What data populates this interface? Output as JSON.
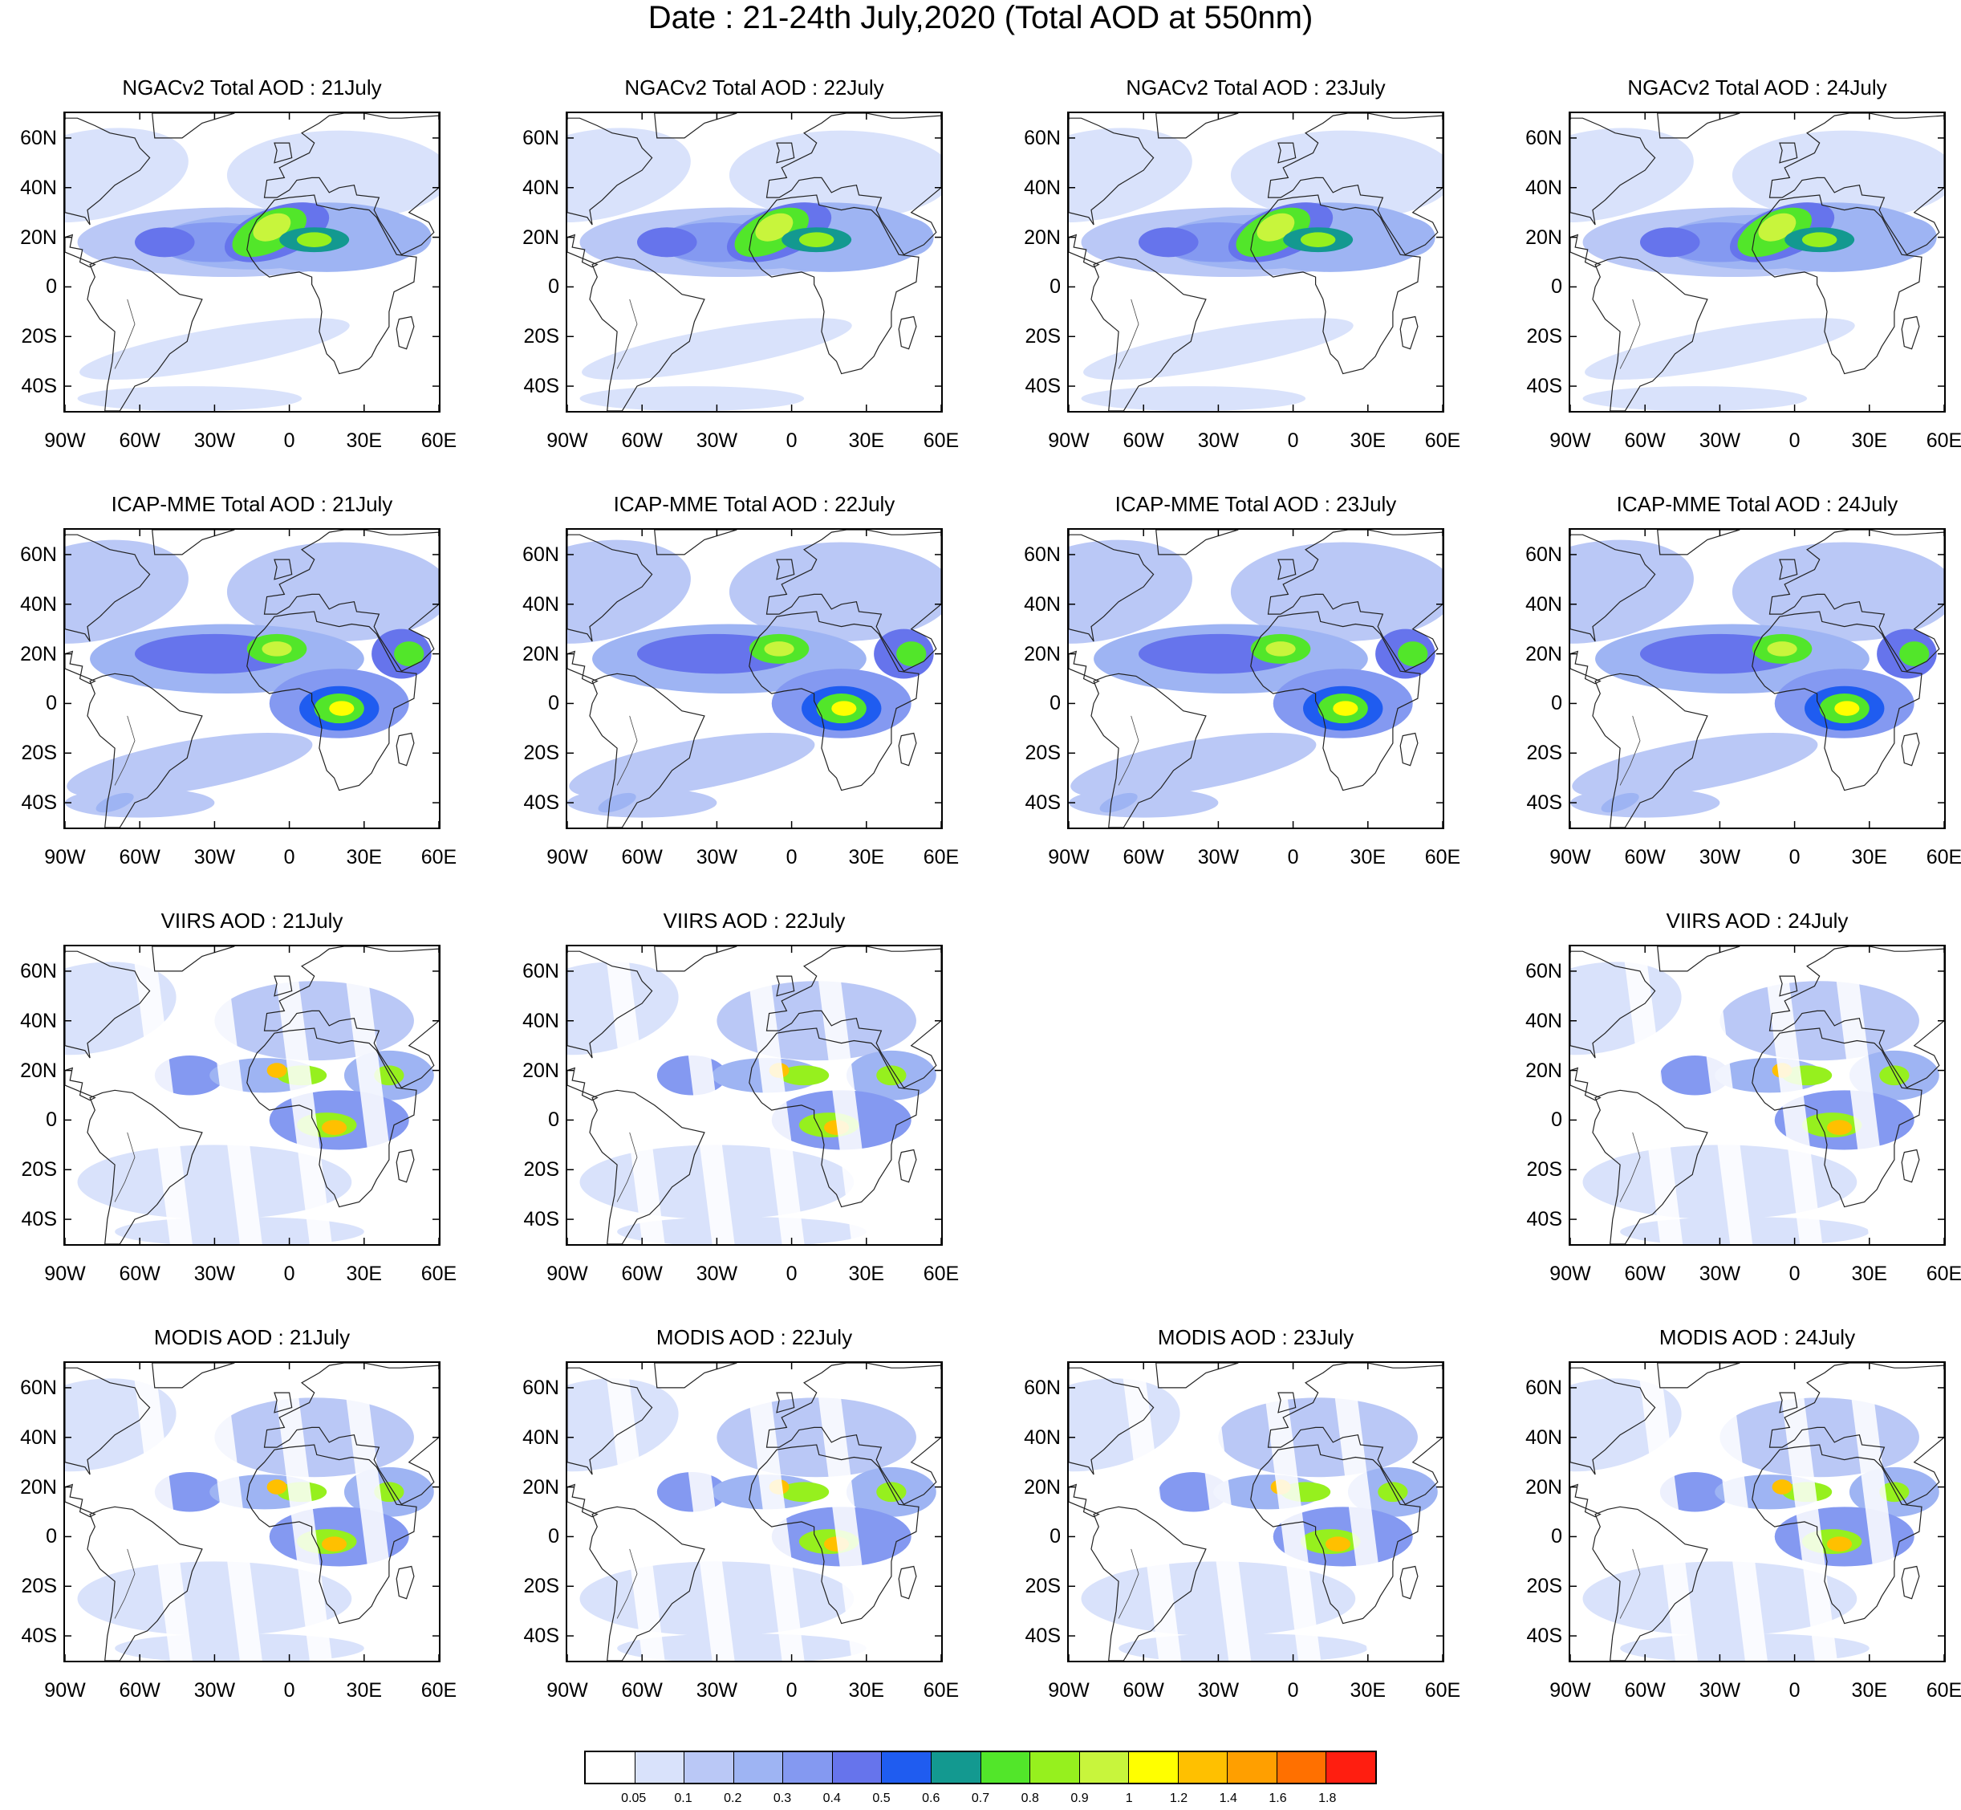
{
  "title": "Date : 21-24th July,2020 (Total AOD at 550nm)",
  "axes": {
    "lat_labels": [
      "60N",
      "40N",
      "20N",
      "0",
      "20S",
      "40S"
    ],
    "lat_values": [
      60,
      40,
      20,
      0,
      -20,
      -40
    ],
    "lon_labels": [
      "90W",
      "60W",
      "30W",
      "0",
      "30E",
      "60E"
    ],
    "lon_values": [
      -90,
      -60,
      -30,
      0,
      30,
      60
    ],
    "lat_range": [
      -50,
      70
    ],
    "lon_range": [
      -90,
      60
    ]
  },
  "panels": [
    {
      "title": "NGACv2 Total AOD : 21July",
      "row": 0,
      "col": 0,
      "type": "model"
    },
    {
      "title": "NGACv2 Total AOD : 22July",
      "row": 0,
      "col": 1,
      "type": "model"
    },
    {
      "title": "NGACv2 Total AOD : 23July",
      "row": 0,
      "col": 2,
      "type": "model"
    },
    {
      "title": "NGACv2 Total AOD : 24July",
      "row": 0,
      "col": 3,
      "type": "model"
    },
    {
      "title": "ICAP-MME Total AOD : 21July",
      "row": 1,
      "col": 0,
      "type": "ensemble"
    },
    {
      "title": "ICAP-MME Total AOD : 22July",
      "row": 1,
      "col": 1,
      "type": "ensemble"
    },
    {
      "title": "ICAP-MME Total AOD : 23July",
      "row": 1,
      "col": 2,
      "type": "ensemble"
    },
    {
      "title": "ICAP-MME Total AOD : 24July",
      "row": 1,
      "col": 3,
      "type": "ensemble"
    },
    {
      "title": "VIIRS AOD : 21July",
      "row": 2,
      "col": 0,
      "type": "satellite"
    },
    {
      "title": "VIIRS AOD : 22July",
      "row": 2,
      "col": 1,
      "type": "satellite"
    },
    {
      "title": "VIIRS AOD : 24July",
      "row": 2,
      "col": 3,
      "type": "satellite"
    },
    {
      "title": "MODIS AOD : 21July",
      "row": 3,
      "col": 0,
      "type": "satellite"
    },
    {
      "title": "MODIS AOD : 22July",
      "row": 3,
      "col": 1,
      "type": "satellite"
    },
    {
      "title": "MODIS AOD : 23July",
      "row": 3,
      "col": 2,
      "type": "satellite"
    },
    {
      "title": "MODIS AOD : 24July",
      "row": 3,
      "col": 3,
      "type": "satellite"
    }
  ],
  "colorbar": {
    "levels": [
      "0.05",
      "0.1",
      "0.2",
      "0.3",
      "0.4",
      "0.5",
      "0.6",
      "0.7",
      "0.8",
      "0.9",
      "1",
      "1.2",
      "1.4",
      "1.6",
      "1.8"
    ],
    "colors": [
      "#ffffff",
      "#d9e2fb",
      "#bac8f6",
      "#9eb4f3",
      "#8499f1",
      "#6674ec",
      "#1f5cf0",
      "#139990",
      "#52e62a",
      "#96f01e",
      "#c8f53c",
      "#ffff00",
      "#ffc000",
      "#ff9f00",
      "#ff7000",
      "#ff1e10"
    ]
  }
}
